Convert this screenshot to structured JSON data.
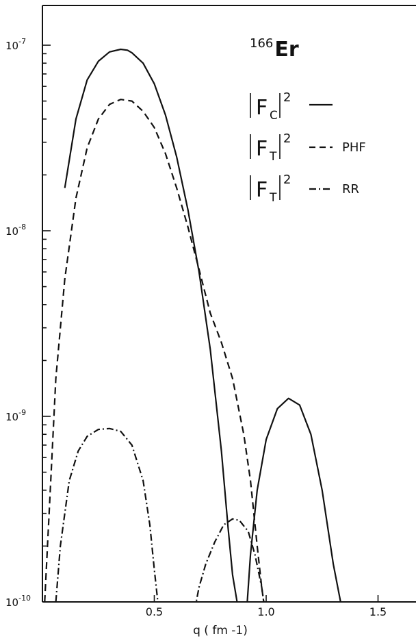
{
  "chart_data": {
    "type": "line",
    "title": "166Er",
    "title_parts": {
      "superscript": "166",
      "main": "Er"
    },
    "xlabel": "q ( fm -1)",
    "xlim": [
      0.0,
      1.7
    ],
    "ylim": [
      1e-10,
      1.3e-07
    ],
    "yscale": "log",
    "grid": false,
    "legend_position": "top-right",
    "x_ticks": [
      0.5,
      1.0,
      1.5
    ],
    "x_tick_labels": [
      "0.5",
      "1.0",
      "1.5"
    ],
    "y_ticks": [
      {
        "value": 1e-07,
        "base": "10",
        "exp": "-7"
      },
      {
        "value": 1e-08,
        "base": "10",
        "exp": "-8"
      },
      {
        "value": 1e-09,
        "base": "10",
        "exp": "-9"
      },
      {
        "value": 1e-10,
        "base": "10",
        "exp": "-10"
      }
    ],
    "series": [
      {
        "legend": {
          "symbol": "F",
          "subscript": "C",
          "superscript": "2",
          "note": ""
        },
        "style": "solid",
        "x": [
          0.1,
          0.15,
          0.2,
          0.25,
          0.3,
          0.35,
          0.38,
          0.4,
          0.45,
          0.5,
          0.55,
          0.6,
          0.65,
          0.7,
          0.75,
          0.8,
          0.83,
          0.85,
          0.87,
          0.88
        ],
        "y": [
          1.7e-08,
          4e-08,
          6.5e-08,
          8.2e-08,
          9.2e-08,
          9.5e-08,
          9.4e-08,
          9.1e-08,
          8e-08,
          6.2e-08,
          4.2e-08,
          2.5e-08,
          1.3e-08,
          6e-09,
          2.3e-09,
          6.5e-10,
          2.5e-10,
          1.4e-10,
          1e-10,
          8e-11
        ]
      },
      {
        "legend": null,
        "style": "solid",
        "x": [
          0.91,
          0.93,
          0.96,
          1.0,
          1.05,
          1.1,
          1.15,
          1.2,
          1.25,
          1.3,
          1.34
        ],
        "y": [
          8e-11,
          1.8e-10,
          4e-10,
          7.5e-10,
          1.1e-09,
          1.25e-09,
          1.15e-09,
          8e-10,
          4e-10,
          1.6e-10,
          9e-11
        ]
      },
      {
        "legend": {
          "symbol": "F",
          "subscript": "T",
          "superscript": "2",
          "note": "PHF"
        },
        "style": "dashed",
        "x": [
          0.01,
          0.03,
          0.06,
          0.1,
          0.15,
          0.2,
          0.25,
          0.3,
          0.35,
          0.4,
          0.45,
          0.5,
          0.55,
          0.6,
          0.65,
          0.7,
          0.75,
          0.8,
          0.85,
          0.9,
          0.93,
          0.96,
          0.98,
          1.0
        ],
        "y": [
          1e-10,
          3e-10,
          1.6e-09,
          5.5e-09,
          1.5e-08,
          2.8e-08,
          4e-08,
          4.8e-08,
          5.1e-08,
          5e-08,
          4.4e-08,
          3.6e-08,
          2.6e-08,
          1.7e-08,
          1.05e-08,
          6.2e-09,
          3.6e-09,
          2.5e-09,
          1.6e-09,
          8e-10,
          4.5e-10,
          2e-10,
          1.2e-10,
          8e-11
        ]
      },
      {
        "legend": {
          "symbol": "F",
          "subscript": "T",
          "superscript": "2",
          "note": "RR"
        },
        "style": "dashdot",
        "x": [
          0.06,
          0.08,
          0.12,
          0.16,
          0.2,
          0.25,
          0.3,
          0.35,
          0.4,
          0.45,
          0.48,
          0.5,
          0.52
        ],
        "y": [
          1e-10,
          2e-10,
          4.5e-10,
          6.5e-10,
          7.8e-10,
          8.5e-10,
          8.6e-10,
          8.3e-10,
          7e-10,
          4.5e-10,
          2.6e-10,
          1.5e-10,
          9e-11
        ]
      },
      {
        "legend": null,
        "style": "dashdot",
        "x": [
          0.68,
          0.7,
          0.73,
          0.77,
          0.81,
          0.85,
          0.88,
          0.92,
          0.95,
          0.98,
          1.0
        ],
        "y": [
          9e-11,
          1.2e-10,
          1.6e-10,
          2.1e-10,
          2.6e-10,
          2.8e-10,
          2.75e-10,
          2.4e-10,
          1.8e-10,
          1.2e-10,
          8e-11
        ]
      }
    ]
  }
}
